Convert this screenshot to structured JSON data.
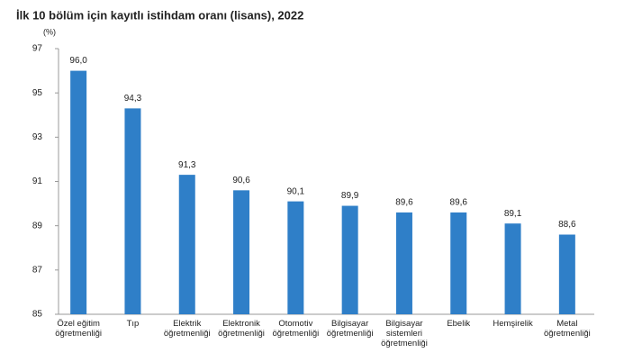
{
  "chart_data": {
    "type": "bar",
    "title": "İlk 10 bölüm için kayıtlı istihdam oranı (lisans), 2022",
    "y_axis_label": "(%)",
    "categories": [
      "Özel eğitim öğretmenliği",
      "Tıp",
      "Elektrik öğretmenliği",
      "Elektronik öğretmenliği",
      "Otomotiv öğretmenliği",
      "Bilgisayar öğretmenliği",
      "Bilgisayar sistemleri öğretmenliği",
      "Ebelik",
      "Hemşirelik",
      "Metal öğretmenliği"
    ],
    "values": [
      96.0,
      94.3,
      91.3,
      90.6,
      90.1,
      89.9,
      89.6,
      89.6,
      89.1,
      88.6
    ],
    "value_labels": [
      "96,0",
      "94,3",
      "91,3",
      "90,6",
      "90,1",
      "89,9",
      "89,6",
      "89,6",
      "89,1",
      "88,6"
    ],
    "color": "#2f7fc8",
    "ylim": [
      85,
      97
    ],
    "yticks": [
      85,
      87,
      89,
      91,
      93,
      95,
      97
    ],
    "grid": false
  }
}
